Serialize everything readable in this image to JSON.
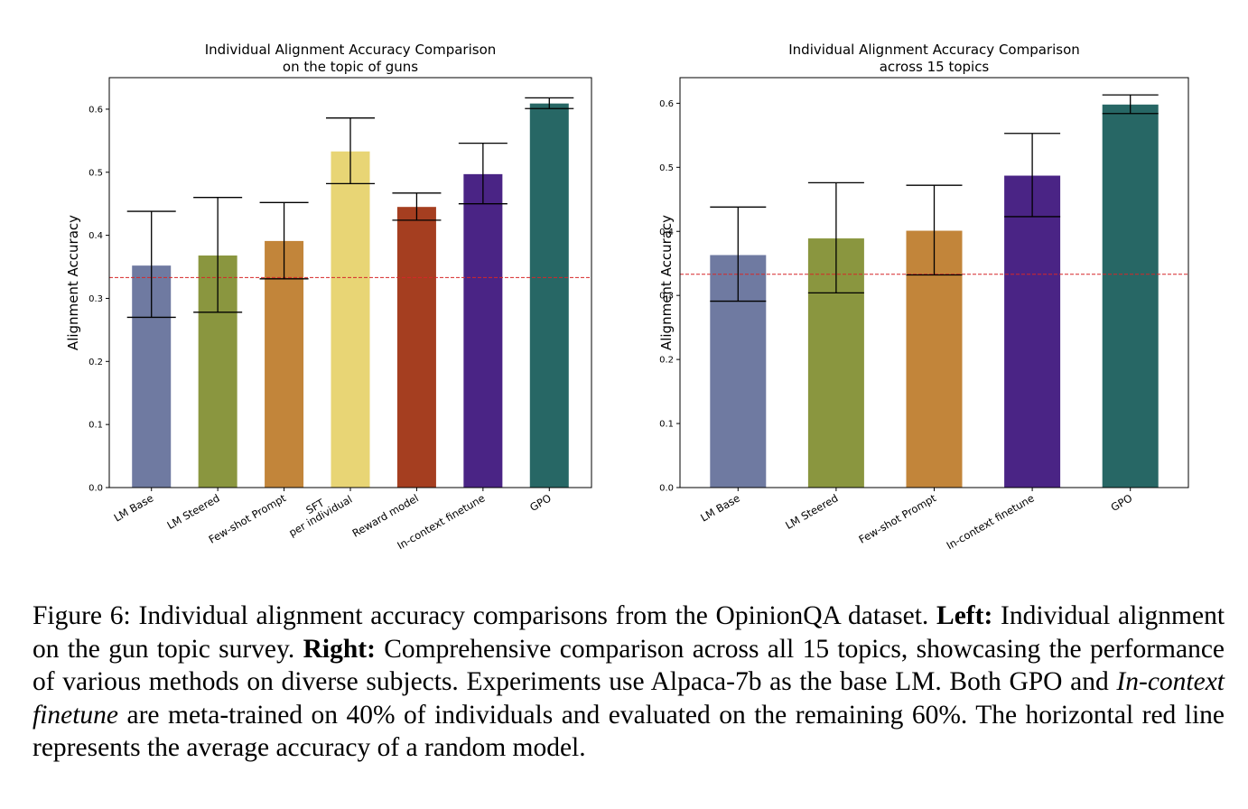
{
  "chart_data": [
    {
      "type": "bar",
      "title": [
        "Individual Alignment Accuracy Comparison",
        "on the topic of guns"
      ],
      "xlabel": "",
      "ylabel": "Alignment Accuracy",
      "ylim": [
        0,
        0.65
      ],
      "yticks": [
        "0.0",
        "0.1",
        "0.2",
        "0.3",
        "0.4",
        "0.5",
        "0.6"
      ],
      "categories": [
        [
          "LM Base"
        ],
        [
          "LM Steered"
        ],
        [
          "Few-shot Prompt"
        ],
        [
          "SFT",
          "per individual"
        ],
        [
          "Reward model"
        ],
        [
          "In-context finetune"
        ],
        [
          "GPO"
        ]
      ],
      "values": [
        0.352,
        0.368,
        0.391,
        0.533,
        0.445,
        0.497,
        0.609
      ],
      "err_low": [
        0.27,
        0.278,
        0.331,
        0.482,
        0.424,
        0.45,
        0.601
      ],
      "err_high": [
        0.438,
        0.46,
        0.452,
        0.586,
        0.467,
        0.546,
        0.618
      ],
      "colors": [
        "#6f7aa1",
        "#8a963f",
        "#c2853a",
        "#e8d575",
        "#a53e20",
        "#4a2485",
        "#276765"
      ],
      "reference_line": 0.333,
      "reference_color": "#d62728",
      "grid": false,
      "legend": "none"
    },
    {
      "type": "bar",
      "title": [
        "Individual Alignment Accuracy Comparison",
        "across 15 topics"
      ],
      "xlabel": "",
      "ylabel": "Alignment Accuracy",
      "ylim": [
        0,
        0.64
      ],
      "yticks": [
        "0.0",
        "0.1",
        "0.2",
        "0.3",
        "0.4",
        "0.5",
        "0.6"
      ],
      "categories": [
        [
          "LM Base"
        ],
        [
          "LM Steered"
        ],
        [
          "Few-shot Prompt"
        ],
        [
          "In-context finetune"
        ],
        [
          "GPO"
        ]
      ],
      "values": [
        0.363,
        0.389,
        0.401,
        0.487,
        0.598
      ],
      "err_low": [
        0.291,
        0.304,
        0.332,
        0.423,
        0.584
      ],
      "err_high": [
        0.438,
        0.476,
        0.472,
        0.553,
        0.613
      ],
      "colors": [
        "#6f7aa1",
        "#8a963f",
        "#c2853a",
        "#4a2485",
        "#276765"
      ],
      "reference_line": 0.333,
      "reference_color": "#d62728",
      "grid": false,
      "legend": "none"
    }
  ],
  "caption": {
    "label": "Figure 6:",
    "lead": "Individual alignment accuracy comparisons from the OpinionQA dataset.",
    "left_label": "Left:",
    "left_text": "Individual alignment on the gun topic survey.",
    "right_label": "Right:",
    "right_text": "Comprehensive comparison across all 15 topics, showcasing the performance of various methods on diverse subjects. Experiments use Alpaca-7b as the base LM. Both GPO and",
    "italic_term": "In-context finetune",
    "rest_text": "are meta-trained on 40% of individuals and evaluated on the remaining 60%. The horizontal red line represents the average accuracy of a random model."
  }
}
